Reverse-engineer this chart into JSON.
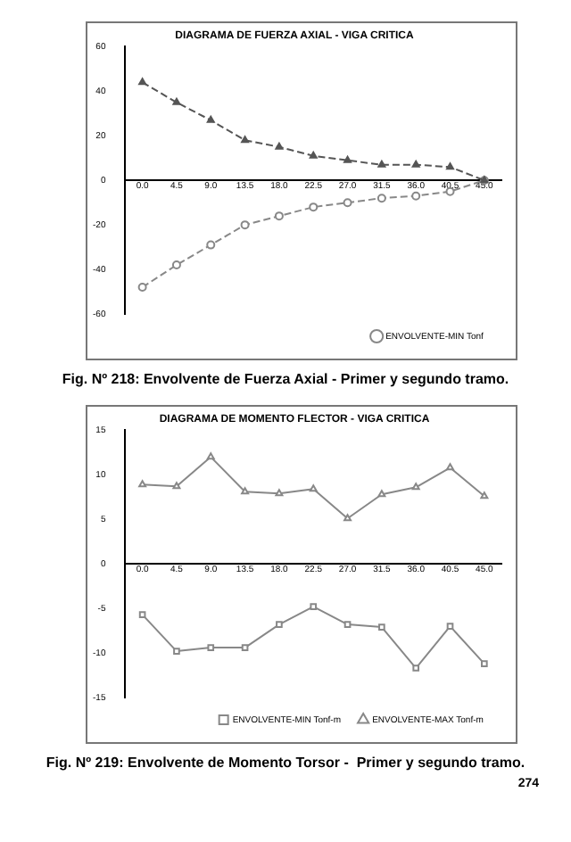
{
  "chart_data": [
    {
      "type": "line",
      "title": "DIAGRAMA DE FUERZA AXIAL - VIGA CRITICA",
      "categories": [
        "0.0",
        "4.5",
        "9.0",
        "13.5",
        "18.0",
        "22.5",
        "27.0",
        "31.5",
        "36.0",
        "40.5",
        "45.0"
      ],
      "series": [
        {
          "color": "#555555",
          "marker": "triangle",
          "values": [
            44,
            35,
            27,
            18,
            15,
            11,
            9,
            7,
            7,
            6,
            0
          ]
        },
        {
          "name": "ENVOLVENTE-MIN Tonf",
          "color": "#888888",
          "marker": "circle",
          "values": [
            -48,
            -38,
            -29,
            -20,
            -16,
            -12,
            -10,
            -8,
            -7,
            -5,
            0
          ]
        }
      ],
      "ylim": [
        -60,
        60
      ],
      "yticks": [
        -60,
        -40,
        -20,
        0,
        20,
        40,
        60
      ],
      "grid": false,
      "legend": "bottom right",
      "line_style": "dashed",
      "annotations": [
        "Fig. Nº 218: Envolvente de Fuerza Axial - Primer y segundo tramo."
      ]
    },
    {
      "type": "line",
      "title": "DIAGRAMA DE MOMENTO FLECTOR - VIGA CRITICA",
      "categories": [
        "0.0",
        "4.5",
        "9.0",
        "13.5",
        "18.0",
        "22.5",
        "27.0",
        "31.5",
        "36.0",
        "40.5",
        "45.0"
      ],
      "series": [
        {
          "name": "ENVOLVENTE-MIN Tonf-m",
          "color": "#888888",
          "marker": "square",
          "values": [
            -5.7,
            -9.8,
            -9.4,
            -9.4,
            -6.8,
            -4.8,
            -6.8,
            -7.1,
            -11.7,
            -7,
            -11.2
          ]
        },
        {
          "name": "ENVOLVENTE-MAX Tonf-m",
          "color": "#888888",
          "marker": "triangle",
          "values": [
            8.9,
            8.7,
            12,
            8.1,
            7.9,
            8.4,
            5.1,
            7.8,
            8.6,
            10.8,
            7.6
          ]
        }
      ],
      "ylim": [
        -15,
        15
      ],
      "yticks": [
        -15,
        -10,
        -5,
        0,
        5,
        10,
        15
      ],
      "grid": false,
      "legend": "bottom right",
      "line_style": "solid",
      "annotations": [
        "Fig. Nº 219: Envolvente de Momento Torsor -  Primer y segundo tramo.",
        "274"
      ]
    }
  ]
}
